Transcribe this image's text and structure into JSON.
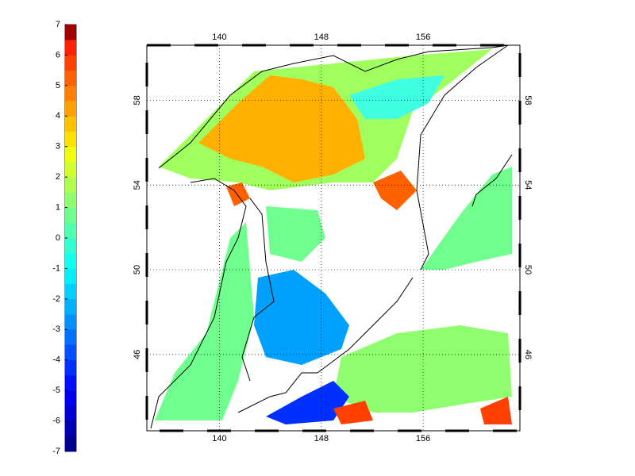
{
  "colorbar": {
    "lim": [
      -7,
      7
    ],
    "ticks": [
      -7,
      -6,
      -5,
      -4,
      -3,
      -2,
      -1,
      0,
      1,
      2,
      3,
      4,
      5,
      6,
      7
    ],
    "colors": [
      "#000090",
      "#0000b0",
      "#0000d0",
      "#0000f0",
      "#0010ff",
      "#0030ff",
      "#0050ff",
      "#0070ff",
      "#0090ff",
      "#00b0ff",
      "#00d0ff",
      "#00f0ff",
      "#10ffef",
      "#30ffcf",
      "#50ffaf",
      "#70ff8f",
      "#90ff6f",
      "#b0ff4f",
      "#d0ff2f",
      "#f0ff0f",
      "#ffe000",
      "#ffc000",
      "#ffa000",
      "#ff8000",
      "#ff6000",
      "#ff4000",
      "#ff2000",
      "#a00000"
    ]
  },
  "map": {
    "lonlim": [
      134.3,
      163.6
    ],
    "latlim": [
      42.4,
      60.6
    ],
    "lon_ticks": [
      140,
      148,
      156
    ],
    "lat_ticks": [
      46,
      50,
      54,
      58
    ]
  }
}
